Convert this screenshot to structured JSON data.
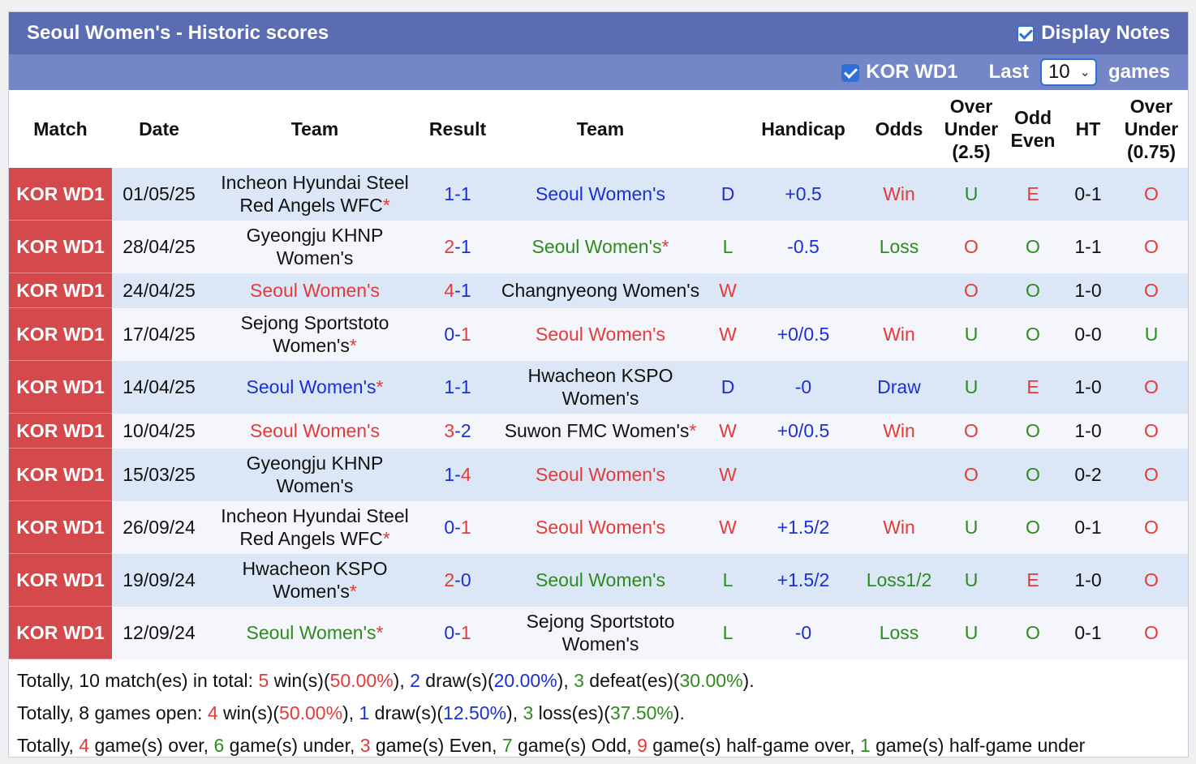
{
  "header": {
    "title": "Seoul Women's - Historic scores",
    "display_notes_label": "Display Notes",
    "league_filter_label": "KOR WD1",
    "last_label": "Last",
    "games_select_value": "10",
    "games_label": "games"
  },
  "columns": [
    "Match",
    "Date",
    "Team",
    "Result",
    "Team",
    "",
    "Handicap",
    "Odds",
    "Over Under (2.5)",
    "Odd Even",
    "HT",
    "Over Under (0.75)"
  ],
  "colors": {
    "title_bar": "#5b6cb2",
    "sub_bar": "#7486c6",
    "league_cell": "#d4494b",
    "win": "#e43a3a",
    "draw": "#1a2fd6",
    "loss": "#2e8b1e"
  },
  "rows": [
    {
      "league": "KOR WD1",
      "date": "01/05/25",
      "home": "Incheon Hyundai Steel Red Angels WFC",
      "home_star": "*",
      "home_color": "black",
      "score_home": "1",
      "score_away": "1",
      "score_home_color": "blue",
      "score_away_color": "blue",
      "away": "Seoul Women's",
      "away_star": "",
      "away_color": "blue",
      "res": "D",
      "res_color": "blue",
      "handicap": "+0.5",
      "hcp_color": "blue",
      "odds": "Win",
      "odds_color": "red",
      "ou": "U",
      "ou_color": "green",
      "oe": "E",
      "oe_color": "red",
      "ht": "0-1",
      "ou2": "O",
      "ou2_color": "red"
    },
    {
      "league": "KOR WD1",
      "date": "28/04/25",
      "home": "Gyeongju KHNP Women's",
      "home_star": "",
      "home_color": "black",
      "score_home": "2",
      "score_away": "1",
      "score_home_color": "red",
      "score_away_color": "blue",
      "away": "Seoul Women's",
      "away_star": "*",
      "away_color": "green",
      "res": "L",
      "res_color": "green",
      "handicap": "-0.5",
      "hcp_color": "blue",
      "odds": "Loss",
      "odds_color": "green",
      "ou": "O",
      "ou_color": "red",
      "oe": "O",
      "oe_color": "green",
      "ht": "1-1",
      "ou2": "O",
      "ou2_color": "red"
    },
    {
      "league": "KOR WD1",
      "date": "24/04/25",
      "home": "Seoul Women's",
      "home_star": "",
      "home_color": "red",
      "score_home": "4",
      "score_away": "1",
      "score_home_color": "red",
      "score_away_color": "blue",
      "away": "Changnyeong Women's",
      "away_star": "",
      "away_color": "black",
      "res": "W",
      "res_color": "red",
      "handicap": "",
      "hcp_color": "blue",
      "odds": "",
      "odds_color": "red",
      "ou": "O",
      "ou_color": "red",
      "oe": "O",
      "oe_color": "green",
      "ht": "1-0",
      "ou2": "O",
      "ou2_color": "red"
    },
    {
      "league": "KOR WD1",
      "date": "17/04/25",
      "home": "Sejong Sportstoto Women's",
      "home_star": "*",
      "home_color": "black",
      "score_home": "0",
      "score_away": "1",
      "score_home_color": "blue",
      "score_away_color": "red",
      "away": "Seoul Women's",
      "away_star": "",
      "away_color": "red",
      "res": "W",
      "res_color": "red",
      "handicap": "+0/0.5",
      "hcp_color": "blue",
      "odds": "Win",
      "odds_color": "red",
      "ou": "U",
      "ou_color": "green",
      "oe": "O",
      "oe_color": "green",
      "ht": "0-0",
      "ou2": "U",
      "ou2_color": "green"
    },
    {
      "league": "KOR WD1",
      "date": "14/04/25",
      "home": "Seoul Women's",
      "home_star": "*",
      "home_color": "blue",
      "score_home": "1",
      "score_away": "1",
      "score_home_color": "blue",
      "score_away_color": "blue",
      "away": "Hwacheon KSPO Women's",
      "away_star": "",
      "away_color": "black",
      "res": "D",
      "res_color": "blue",
      "handicap": "-0",
      "hcp_color": "blue",
      "odds": "Draw",
      "odds_color": "blue",
      "ou": "U",
      "ou_color": "green",
      "oe": "E",
      "oe_color": "red",
      "ht": "1-0",
      "ou2": "O",
      "ou2_color": "red"
    },
    {
      "league": "KOR WD1",
      "date": "10/04/25",
      "home": "Seoul Women's",
      "home_star": "",
      "home_color": "red",
      "score_home": "3",
      "score_away": "2",
      "score_home_color": "red",
      "score_away_color": "blue",
      "away": "Suwon FMC Women's",
      "away_star": "*",
      "away_color": "black",
      "res": "W",
      "res_color": "red",
      "handicap": "+0/0.5",
      "hcp_color": "blue",
      "odds": "Win",
      "odds_color": "red",
      "ou": "O",
      "ou_color": "red",
      "oe": "O",
      "oe_color": "green",
      "ht": "1-0",
      "ou2": "O",
      "ou2_color": "red"
    },
    {
      "league": "KOR WD1",
      "date": "15/03/25",
      "home": "Gyeongju KHNP Women's",
      "home_star": "",
      "home_color": "black",
      "score_home": "1",
      "score_away": "4",
      "score_home_color": "blue",
      "score_away_color": "red",
      "away": "Seoul Women's",
      "away_star": "",
      "away_color": "red",
      "res": "W",
      "res_color": "red",
      "handicap": "",
      "hcp_color": "blue",
      "odds": "",
      "odds_color": "red",
      "ou": "O",
      "ou_color": "red",
      "oe": "O",
      "oe_color": "green",
      "ht": "0-2",
      "ou2": "O",
      "ou2_color": "red"
    },
    {
      "league": "KOR WD1",
      "date": "26/09/24",
      "home": "Incheon Hyundai Steel Red Angels WFC",
      "home_star": "*",
      "home_color": "black",
      "score_home": "0",
      "score_away": "1",
      "score_home_color": "blue",
      "score_away_color": "red",
      "away": "Seoul Women's",
      "away_star": "",
      "away_color": "red",
      "res": "W",
      "res_color": "red",
      "handicap": "+1.5/2",
      "hcp_color": "blue",
      "odds": "Win",
      "odds_color": "red",
      "ou": "U",
      "ou_color": "green",
      "oe": "O",
      "oe_color": "green",
      "ht": "0-1",
      "ou2": "O",
      "ou2_color": "red"
    },
    {
      "league": "KOR WD1",
      "date": "19/09/24",
      "home": "Hwacheon KSPO Women's",
      "home_star": "*",
      "home_color": "black",
      "score_home": "2",
      "score_away": "0",
      "score_home_color": "red",
      "score_away_color": "blue",
      "away": "Seoul Women's",
      "away_star": "",
      "away_color": "green",
      "res": "L",
      "res_color": "green",
      "handicap": "+1.5/2",
      "hcp_color": "blue",
      "odds": "Loss1/2",
      "odds_color": "green",
      "ou": "U",
      "ou_color": "green",
      "oe": "E",
      "oe_color": "red",
      "ht": "1-0",
      "ou2": "O",
      "ou2_color": "red"
    },
    {
      "league": "KOR WD1",
      "date": "12/09/24",
      "home": "Seoul Women's",
      "home_star": "*",
      "home_color": "green",
      "score_home": "0",
      "score_away": "1",
      "score_home_color": "blue",
      "score_away_color": "red",
      "away": "Sejong Sportstoto Women's",
      "away_star": "",
      "away_color": "black",
      "res": "L",
      "res_color": "green",
      "handicap": "-0",
      "hcp_color": "blue",
      "odds": "Loss",
      "odds_color": "green",
      "ou": "U",
      "ou_color": "green",
      "oe": "O",
      "oe_color": "green",
      "ht": "0-1",
      "ou2": "O",
      "ou2_color": "red"
    }
  ],
  "summary": {
    "line1": [
      {
        "t": "Totally, ",
        "c": ""
      },
      {
        "t": "10",
        "c": "b"
      },
      {
        "t": " match(es) in total: ",
        "c": ""
      },
      {
        "t": "5",
        "c": "red b"
      },
      {
        "t": " win(s)(",
        "c": ""
      },
      {
        "t": "50.00%",
        "c": "red b"
      },
      {
        "t": "), ",
        "c": ""
      },
      {
        "t": "2",
        "c": "blue b"
      },
      {
        "t": " draw(s)(",
        "c": ""
      },
      {
        "t": "20.00%",
        "c": "blue b"
      },
      {
        "t": "), ",
        "c": ""
      },
      {
        "t": "3",
        "c": "green b"
      },
      {
        "t": " defeat(es)(",
        "c": ""
      },
      {
        "t": "30.00%",
        "c": "green b"
      },
      {
        "t": ").",
        "c": ""
      }
    ],
    "line2": [
      {
        "t": "Totally, ",
        "c": ""
      },
      {
        "t": "8",
        "c": "b"
      },
      {
        "t": " games open: ",
        "c": ""
      },
      {
        "t": "4",
        "c": "red b"
      },
      {
        "t": " win(s)(",
        "c": ""
      },
      {
        "t": "50.00%",
        "c": "red b"
      },
      {
        "t": "), ",
        "c": ""
      },
      {
        "t": "1",
        "c": "blue b"
      },
      {
        "t": " draw(s)(",
        "c": ""
      },
      {
        "t": "12.50%",
        "c": "blue b"
      },
      {
        "t": "), ",
        "c": ""
      },
      {
        "t": "3",
        "c": "green b"
      },
      {
        "t": " loss(es)(",
        "c": ""
      },
      {
        "t": "37.50%",
        "c": "green b"
      },
      {
        "t": ").",
        "c": ""
      }
    ],
    "line3": [
      {
        "t": "Totally, ",
        "c": ""
      },
      {
        "t": "4",
        "c": "red b"
      },
      {
        "t": " game(s) over, ",
        "c": ""
      },
      {
        "t": "6",
        "c": "green b"
      },
      {
        "t": " game(s) under, ",
        "c": ""
      },
      {
        "t": "3",
        "c": "red b"
      },
      {
        "t": " game(s) Even, ",
        "c": ""
      },
      {
        "t": "7",
        "c": "green b"
      },
      {
        "t": " game(s) Odd, ",
        "c": ""
      },
      {
        "t": "9",
        "c": "red b"
      },
      {
        "t": " game(s) half-game over, ",
        "c": ""
      },
      {
        "t": "1",
        "c": "green b"
      },
      {
        "t": " game(s) half-game under",
        "c": ""
      }
    ]
  }
}
